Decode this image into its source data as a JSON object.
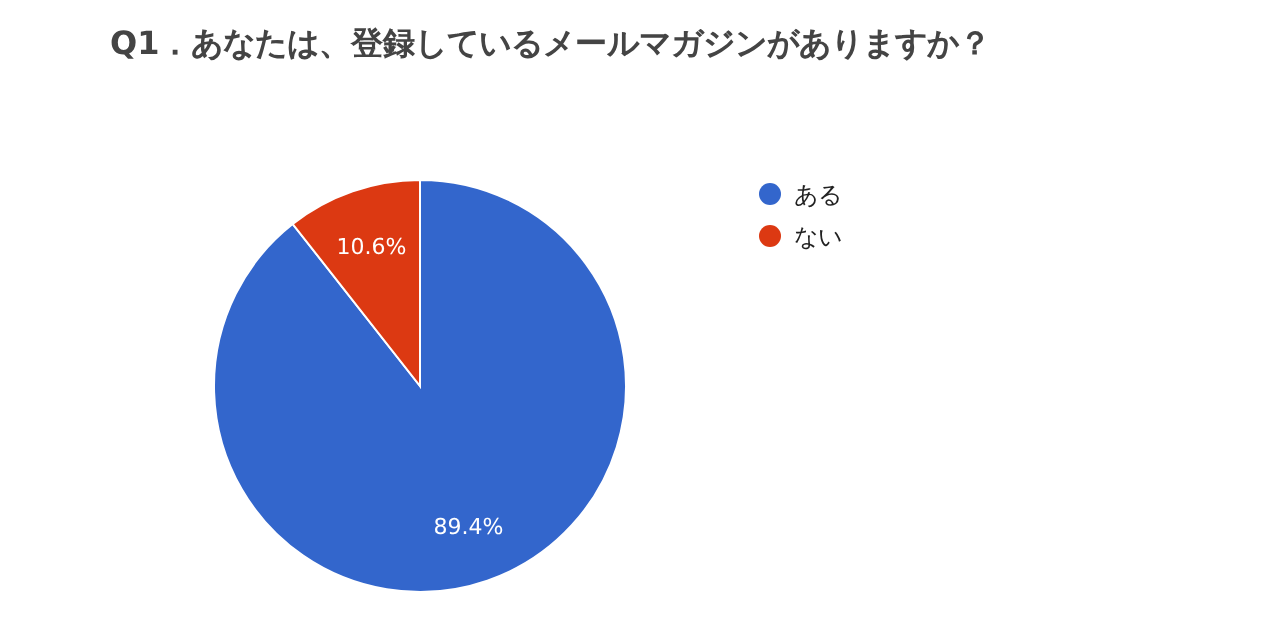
{
  "chart_data": {
    "type": "pie",
    "title": "Q1．あなたは、登録しているメールマガジンがありますか？",
    "categories": [
      "ある",
      "ない"
    ],
    "values": [
      89.4,
      10.6
    ],
    "colors": [
      "#3366cc",
      "#dc3912"
    ],
    "value_labels": [
      "89.4%",
      "10.6%"
    ],
    "legend": "right"
  }
}
